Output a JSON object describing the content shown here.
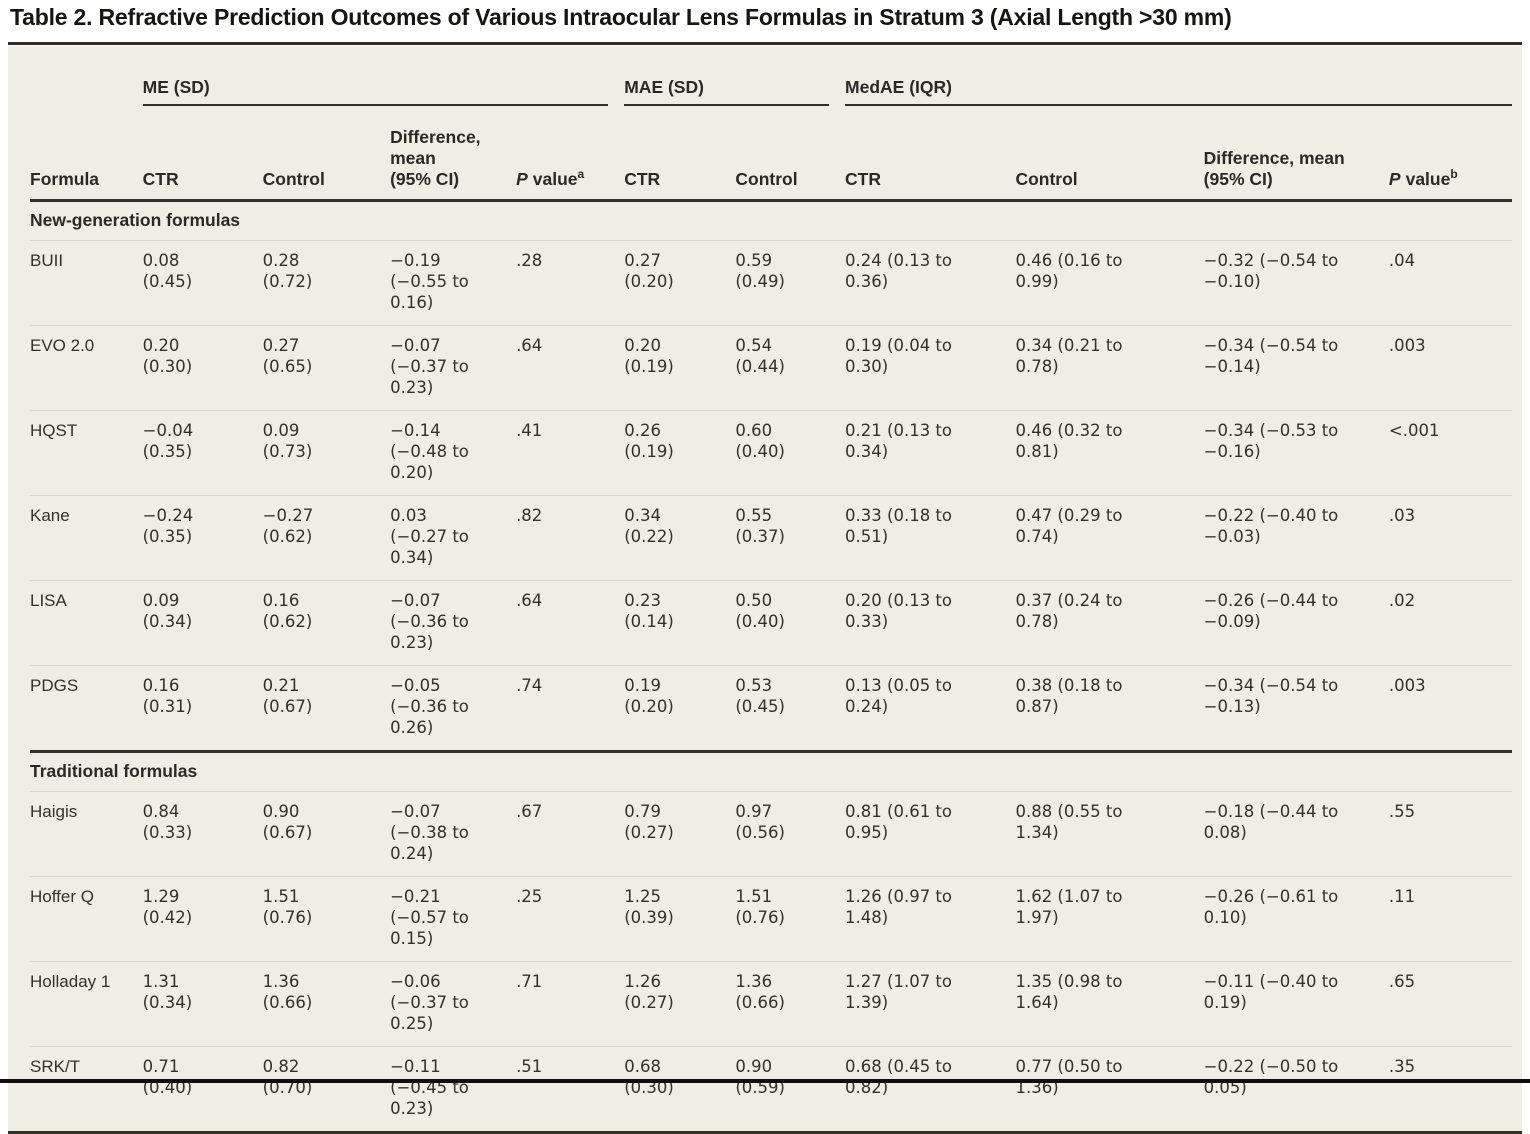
{
  "table": {
    "title": "Table 2. Refractive Prediction Outcomes of Various Intraocular Lens Formulas in Stratum 3 (Axial Length >30 mm)",
    "header": {
      "formula": "Formula",
      "me_group": "ME (SD)",
      "mae_group": "MAE (SD)",
      "medae_group": "MedAE (IQR)",
      "ctr": "CTR",
      "control": "Control",
      "diff_me": "Difference,\nmean\n(95% CI)",
      "diff_medae": "Difference, mean\n(95% CI)",
      "p": "P",
      "value": "value",
      "sup_a": "a",
      "sup_b": "b"
    },
    "sections": [
      {
        "label": "New-generation formulas",
        "rows": [
          {
            "cells": [
              "BUII",
              "0.08\n(0.45)",
              "0.28\n(0.72)",
              "−0.19\n(−0.55 to\n0.16)",
              ".28",
              "0.27\n(0.20)",
              "0.59\n(0.49)",
              "0.24 (0.13 to\n0.36)",
              "0.46 (0.16 to\n0.99)",
              "−0.32 (−0.54 to\n−0.10)",
              ".04"
            ]
          },
          {
            "cells": [
              "EVO 2.0",
              "0.20\n(0.30)",
              "0.27\n(0.65)",
              "−0.07\n(−0.37 to\n0.23)",
              ".64",
              "0.20\n(0.19)",
              "0.54\n(0.44)",
              "0.19 (0.04 to\n0.30)",
              "0.34 (0.21 to\n0.78)",
              "−0.34 (−0.54 to\n−0.14)",
              ".003"
            ]
          },
          {
            "cells": [
              "HQST",
              "−0.04\n(0.35)",
              "0.09\n(0.73)",
              "−0.14\n(−0.48 to\n0.20)",
              ".41",
              "0.26\n(0.19)",
              "0.60\n(0.40)",
              "0.21 (0.13 to\n0.34)",
              "0.46 (0.32 to\n0.81)",
              "−0.34 (−0.53 to\n−0.16)",
              "<.001"
            ]
          },
          {
            "cells": [
              "Kane",
              "−0.24\n(0.35)",
              "−0.27\n(0.62)",
              "0.03\n(−0.27 to\n0.34)",
              ".82",
              "0.34\n(0.22)",
              "0.55\n(0.37)",
              "0.33 (0.18 to\n0.51)",
              "0.47 (0.29 to\n0.74)",
              "−0.22 (−0.40 to\n−0.03)",
              ".03"
            ]
          },
          {
            "cells": [
              "LISA",
              "0.09\n(0.34)",
              "0.16\n(0.62)",
              "−0.07\n(−0.36 to\n0.23)",
              ".64",
              "0.23\n(0.14)",
              "0.50\n(0.40)",
              "0.20 (0.13 to\n0.33)",
              "0.37 (0.24 to\n0.78)",
              "−0.26 (−0.44 to\n−0.09)",
              ".02"
            ]
          },
          {
            "cells": [
              "PDGS",
              "0.16\n(0.31)",
              "0.21\n(0.67)",
              "−0.05\n(−0.36 to\n0.26)",
              ".74",
              "0.19\n(0.20)",
              "0.53\n(0.45)",
              "0.13 (0.05 to\n0.24)",
              "0.38 (0.18 to\n0.87)",
              "−0.34 (−0.54 to\n−0.13)",
              ".003"
            ]
          }
        ]
      },
      {
        "label": "Traditional formulas",
        "rows": [
          {
            "cells": [
              "Haigis",
              "0.84\n(0.33)",
              "0.90\n(0.67)",
              "−0.07\n(−0.38 to\n0.24)",
              ".67",
              "0.79\n(0.27)",
              "0.97\n(0.56)",
              "0.81 (0.61 to\n0.95)",
              "0.88 (0.55 to\n1.34)",
              "−0.18 (−0.44 to\n0.08)",
              ".55"
            ]
          },
          {
            "cells": [
              "Hoffer Q",
              "1.29\n(0.42)",
              "1.51\n(0.76)",
              "−0.21\n(−0.57 to\n0.15)",
              ".25",
              "1.25\n(0.39)",
              "1.51\n(0.76)",
              "1.26 (0.97 to\n1.48)",
              "1.62 (1.07 to\n1.97)",
              "−0.26 (−0.61 to\n0.10)",
              ".11"
            ]
          },
          {
            "cells": [
              "Holladay 1",
              "1.31\n(0.34)",
              "1.36\n(0.66)",
              "−0.06\n(−0.37 to\n0.25)",
              ".71",
              "1.26\n(0.27)",
              "1.36\n(0.66)",
              "1.27 (1.07 to\n1.39)",
              "1.35 (0.98 to\n1.64)",
              "−0.11 (−0.40 to\n0.19)",
              ".65"
            ]
          },
          {
            "cells": [
              "SRK/T",
              "0.71\n(0.40)",
              "0.82\n(0.70)",
              "−0.11\n(−0.45 to\n0.23)",
              ".51",
              "0.68\n(0.30)",
              "0.90\n(0.59)",
              "0.68 (0.45 to\n0.82)",
              "0.77 (0.50 to\n1.36)",
              "−0.22 (−0.50 to\n0.05)",
              ".35"
            ]
          }
        ]
      }
    ]
  }
}
